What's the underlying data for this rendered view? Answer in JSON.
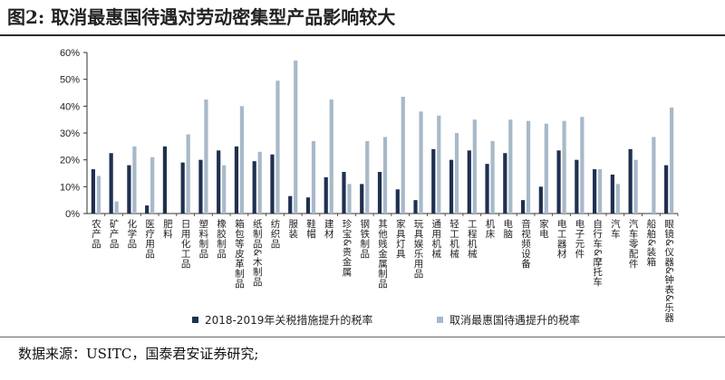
{
  "figure": {
    "title": "图2:  取消最惠国待遇对劳动密集型产品影响较大",
    "source": "数据来源：USITC，国泰君安证券研究;"
  },
  "chart_data": {
    "type": "bar",
    "title": "",
    "xlabel": "",
    "ylabel": "",
    "ylim": [
      0,
      60
    ],
    "yticks": [
      "0%",
      "10%",
      "20%",
      "30%",
      "40%",
      "50%",
      "60%"
    ],
    "grid": false,
    "legend": "bottom",
    "categories": [
      "农产品",
      "矿产品",
      "化学品",
      "医疗用品",
      "肥料",
      "日用化工品",
      "塑料制品",
      "橡胶制品",
      "箱包等皮革制品",
      "纸制品&木制品",
      "纺织品",
      "服装",
      "鞋帽",
      "建材",
      "珍宝&贵金属",
      "钢铁制品",
      "其他贱金属制品",
      "家具灯具",
      "玩具娱乐用品",
      "通用机械",
      "轻工机械",
      "工程机械",
      "机床",
      "电脑",
      "音视频设备",
      "家电",
      "电工器材",
      "电子元件",
      "自行车&摩托车",
      "汽车",
      "汽车零配件",
      "船舶&装箱",
      "眼镜&仪器&钟表&乐器"
    ],
    "series": [
      {
        "name": "2018-2019年关税措施提升的税率",
        "color": "#1f3050",
        "values": [
          16.5,
          22.5,
          18,
          3,
          25,
          19,
          20,
          23.5,
          25,
          19.5,
          22,
          6.5,
          6,
          13.5,
          15.5,
          11,
          15.5,
          9,
          5,
          24,
          20,
          23.5,
          18.5,
          22.5,
          5,
          10,
          23.5,
          20,
          16.5,
          14.5,
          24,
          0,
          18
        ]
      },
      {
        "name": "取消最惠国待遇提升的税率",
        "color": "#a7b9c9",
        "values": [
          14,
          4.5,
          25,
          21,
          0,
          29.5,
          42.5,
          18,
          40,
          23,
          49.5,
          57,
          27,
          42.5,
          11,
          27,
          28.5,
          43.5,
          38,
          36.5,
          30,
          35,
          27,
          35,
          34.5,
          33.5,
          34.5,
          36,
          16.5,
          11,
          20,
          28.5,
          39.5
        ]
      }
    ]
  }
}
